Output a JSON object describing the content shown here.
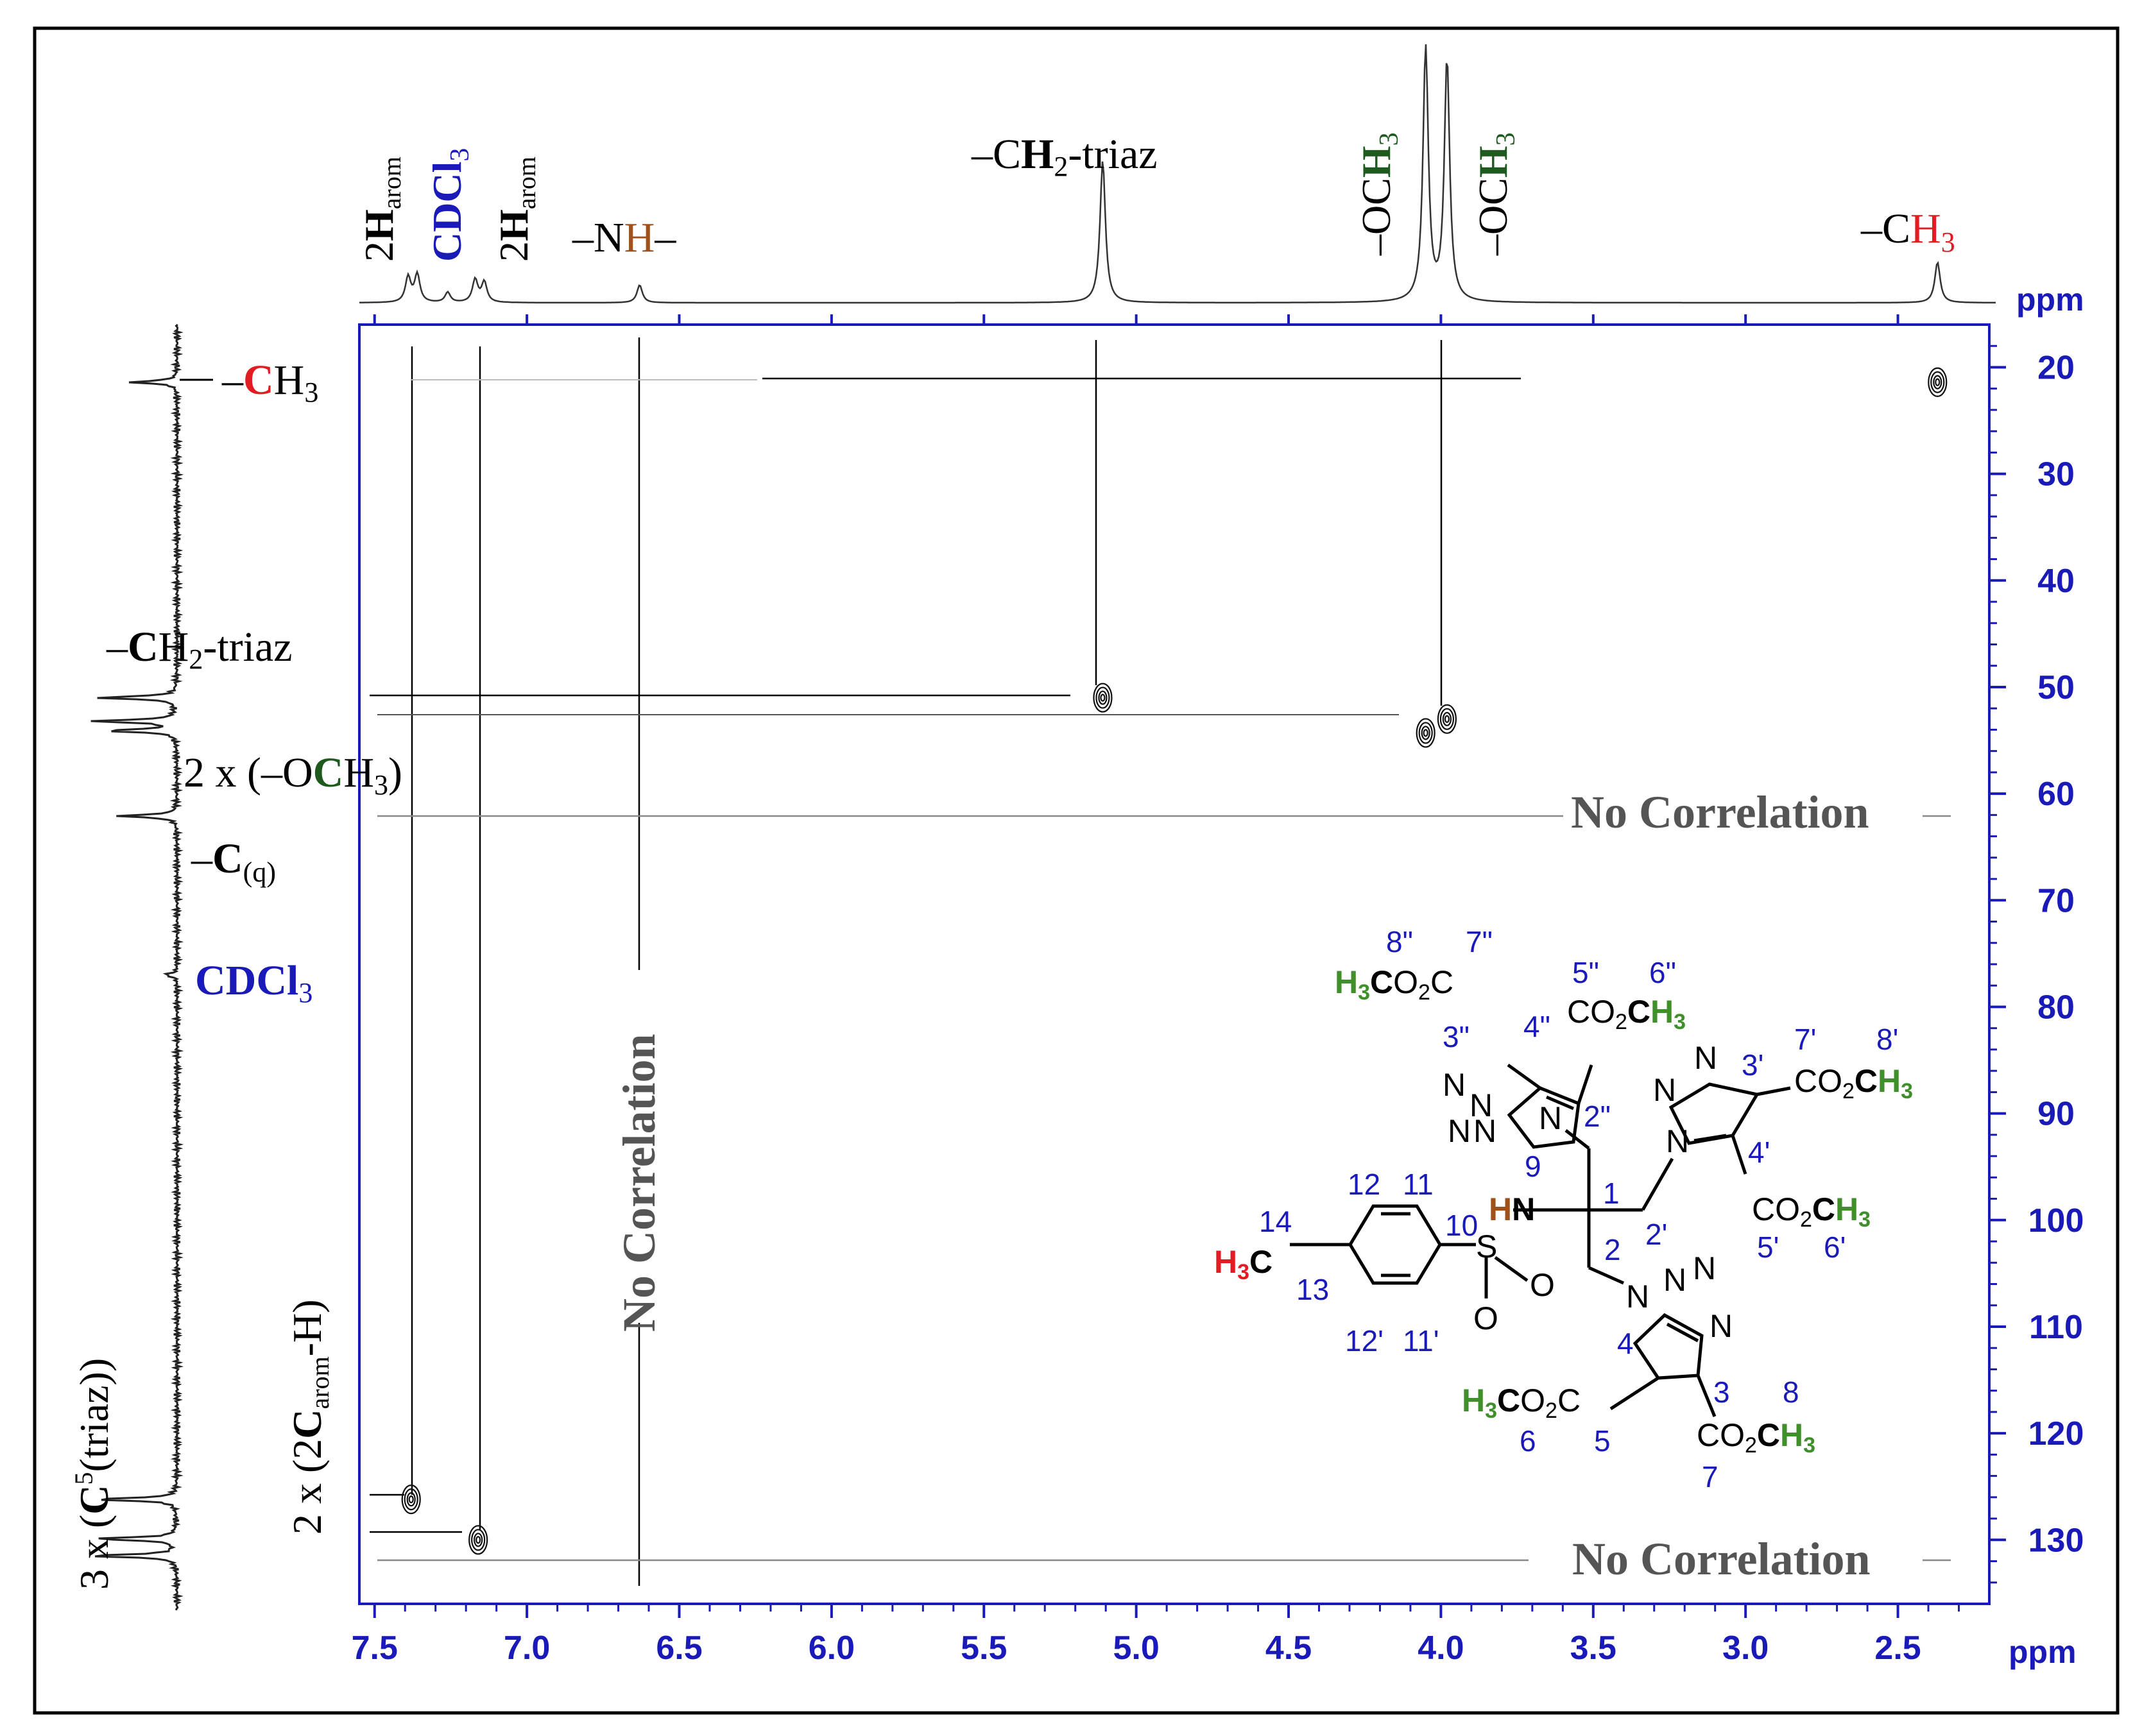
{
  "chart_data": {
    "type": "2D NMR HSQC correlation map",
    "x_axis": {
      "unit_label": "ppm",
      "range_ppm": [
        7.55,
        2.2
      ],
      "ticks": [
        "7.5",
        "7.0",
        "6.5",
        "6.0",
        "5.5",
        "5.0",
        "4.5",
        "4.0",
        "3.5",
        "3.0",
        "2.5"
      ],
      "tick_values": [
        7.5,
        7.0,
        6.5,
        6.0,
        5.5,
        5.0,
        4.5,
        4.0,
        3.5,
        3.0,
        2.5
      ],
      "reversed": true
    },
    "y_axis": {
      "unit_label": "ppm",
      "range_ppm": [
        16,
        136
      ],
      "ticks": [
        "20",
        "30",
        "40",
        "50",
        "60",
        "70",
        "80",
        "90",
        "100",
        "110",
        "120",
        "130"
      ],
      "tick_values": [
        20,
        30,
        40,
        50,
        60,
        70,
        80,
        90,
        100,
        110,
        120,
        130
      ]
    },
    "proton_peaks": [
      {
        "ppm": 7.39,
        "height": 0.1
      },
      {
        "ppm": 7.36,
        "height": 0.11
      },
      {
        "ppm": 7.26,
        "height": 0.04
      },
      {
        "ppm": 7.17,
        "height": 0.09
      },
      {
        "ppm": 7.14,
        "height": 0.08
      },
      {
        "ppm": 6.63,
        "height": 0.07
      },
      {
        "ppm": 5.11,
        "height": 0.56
      },
      {
        "ppm": 4.05,
        "height": 1.0
      },
      {
        "ppm": 3.98,
        "height": 0.95
      },
      {
        "ppm": 2.37,
        "height": 0.16
      }
    ],
    "carbon_peaks": [
      {
        "ppm": 21.4,
        "height": 0.55
      },
      {
        "ppm": 51.0,
        "height": 0.95
      },
      {
        "ppm": 53.2,
        "height": 1.0
      },
      {
        "ppm": 54.1,
        "height": 0.85
      },
      {
        "ppm": 62.1,
        "height": 0.7
      },
      {
        "ppm": 77.0,
        "height": 0.15
      },
      {
        "ppm": 126.2,
        "height": 1.0
      },
      {
        "ppm": 129.9,
        "height": 1.0
      },
      {
        "ppm": 131.5,
        "height": 1.05
      }
    ],
    "cross_peaks": [
      {
        "h_ppm": 2.37,
        "c_ppm": 21.4
      },
      {
        "h_ppm": 5.11,
        "c_ppm": 51.0
      },
      {
        "h_ppm": 3.98,
        "c_ppm": 53.0
      },
      {
        "h_ppm": 4.05,
        "c_ppm": 54.3
      },
      {
        "h_ppm": 7.38,
        "c_ppm": 126.2
      },
      {
        "h_ppm": 7.16,
        "c_ppm": 130.0
      }
    ],
    "top_labels": [
      {
        "text": "–NH–",
        "color": "#000000"
      },
      {
        "text": "–CH2-triaz",
        "color": "#000000"
      },
      {
        "text": "–CH3",
        "color": "#e11c23"
      }
    ],
    "top_vertical_labels": [
      {
        "text": "2Harom",
        "color": "#000000"
      },
      {
        "text": "CDCl3",
        "color": "#1a1ab8"
      },
      {
        "text": "2Harom",
        "color": "#000000"
      },
      {
        "text": "–OCH3",
        "color": "#1e5a1e"
      },
      {
        "text": "–OCH3",
        "color": "#1e5a1e"
      }
    ],
    "left_labels": [
      {
        "text": "–CH3"
      },
      {
        "text": "–CH2-triaz"
      },
      {
        "text": "2 x (–OCH3)"
      },
      {
        "text": "–C(q)"
      },
      {
        "text": "CDCl3"
      }
    ],
    "left_vertical_labels": [
      {
        "text": "3 x (C5(triaz))"
      },
      {
        "text": "2 x (2Carom-H)"
      }
    ],
    "no_correlation": [
      "No Correlation",
      "No Correlation",
      "No Correlation"
    ],
    "structure": {
      "numbers": [
        "8\"",
        "7\"",
        "5\"",
        "6\"",
        "3\"",
        "4\"",
        "2\"",
        "7'",
        "8'",
        "3'",
        "4'",
        "2'",
        "1",
        "9",
        "12",
        "11",
        "14",
        "10",
        "13",
        "12'",
        "11'",
        "2",
        "5'",
        "6'",
        "4",
        "3",
        "8",
        "6",
        "5",
        "7"
      ],
      "groups": [
        "H3CO2C",
        "CO2CH3",
        "CO2CH3",
        "CO2CH3",
        "H3CO2C",
        "CO2CH3",
        "HN",
        "H3C"
      ],
      "atoms": [
        "N",
        "N",
        "N",
        "N",
        "N",
        "N",
        "N",
        "N",
        "N",
        "N",
        "N",
        "N",
        "S",
        "O",
        "O"
      ]
    },
    "colors": {
      "axis_blue": "#1a1ab8",
      "red": "#e11c23",
      "dark_green": "#1e5a1e",
      "green": "#3f8f2a",
      "brown": "#a0501a",
      "gray_text": "#555555"
    }
  }
}
